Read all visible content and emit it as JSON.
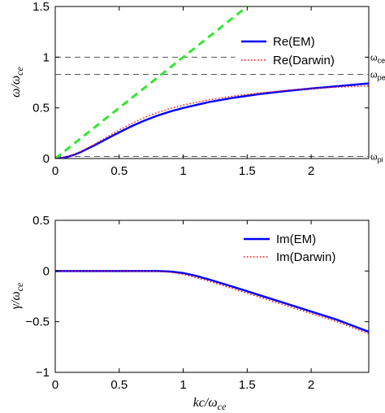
{
  "chart_data": [
    {
      "type": "line",
      "ylabel": "ω/ω_ce",
      "xlim": [
        0,
        2.45
      ],
      "ylim": [
        0,
        1.5
      ],
      "xticks": [
        "0",
        "0.5",
        "1",
        "1.5",
        "2"
      ],
      "xtick_values": [
        0,
        0.5,
        1,
        1.5,
        2
      ],
      "yticks": [
        "0",
        "0.5",
        "1",
        "1.5"
      ],
      "ytick_values": [
        0,
        0.5,
        1,
        1.5
      ],
      "legend_position": "top-right",
      "series": [
        {
          "name": "Re(EM)",
          "color": "#0000ff",
          "style": "solid",
          "x": [
            0,
            0.05,
            0.1,
            0.15,
            0.2,
            0.3,
            0.4,
            0.5,
            0.6,
            0.7,
            0.8,
            0.9,
            1.0,
            1.2,
            1.4,
            1.6,
            1.8,
            2.0,
            2.2,
            2.45
          ],
          "y": [
            0,
            0.005,
            0.018,
            0.038,
            0.064,
            0.126,
            0.193,
            0.259,
            0.321,
            0.376,
            0.424,
            0.465,
            0.499,
            0.557,
            0.601,
            0.637,
            0.666,
            0.691,
            0.713,
            0.741
          ]
        },
        {
          "name": "Re(Darwin)",
          "color": "#ff0000",
          "style": "dotted",
          "x": [
            0,
            0.05,
            0.1,
            0.15,
            0.2,
            0.3,
            0.4,
            0.5,
            0.6,
            0.7,
            0.8,
            0.9,
            1.0,
            1.2,
            1.4,
            1.6,
            1.8,
            2.0,
            2.2,
            2.45
          ],
          "y": [
            0,
            0.006,
            0.02,
            0.041,
            0.068,
            0.135,
            0.209,
            0.282,
            0.348,
            0.406,
            0.455,
            0.495,
            0.528,
            0.58,
            0.618,
            0.648,
            0.672,
            0.691,
            0.704,
            0.716
          ]
        },
        {
          "name": "",
          "color": "#33e633",
          "style": "dashed",
          "x": [
            0,
            1.5
          ],
          "y": [
            0,
            1.5
          ]
        }
      ],
      "hlines": [
        {
          "y": 1.0,
          "label": "ω_ce"
        },
        {
          "y": 0.83,
          "label": "ω_pe"
        },
        {
          "y": 0.02,
          "label": "ω_pi"
        }
      ]
    },
    {
      "type": "line",
      "xlabel": "kc/ω_ce",
      "ylabel": "γ/ω_ce",
      "xlim": [
        0,
        2.45
      ],
      "ylim": [
        -1,
        0.5
      ],
      "xticks": [
        "0",
        "0.5",
        "1",
        "1.5",
        "2"
      ],
      "xtick_values": [
        0,
        0.5,
        1,
        1.5,
        2
      ],
      "yticks": [
        "−1",
        "−0.5",
        "0",
        "0.5"
      ],
      "ytick_values": [
        -1,
        -0.5,
        0,
        0.5
      ],
      "legend_position": "top-right",
      "series": [
        {
          "name": "Im(EM)",
          "color": "#0000ff",
          "style": "solid",
          "x": [
            0,
            0.5,
            0.8,
            0.9,
            1.0,
            1.1,
            1.2,
            1.4,
            1.6,
            1.8,
            2.0,
            2.2,
            2.45
          ],
          "y": [
            0,
            0,
            0,
            -0.005,
            -0.02,
            -0.048,
            -0.083,
            -0.16,
            -0.24,
            -0.32,
            -0.4,
            -0.48,
            -0.6
          ]
        },
        {
          "name": "Im(Darwin)",
          "color": "#ff0000",
          "style": "dotted",
          "x": [
            0,
            0.5,
            0.8,
            0.9,
            1.0,
            1.1,
            1.2,
            1.4,
            1.6,
            1.8,
            2.0,
            2.2,
            2.45
          ],
          "y": [
            0,
            0,
            -0.003,
            -0.013,
            -0.033,
            -0.065,
            -0.1,
            -0.18,
            -0.26,
            -0.34,
            -0.42,
            -0.5,
            -0.62
          ]
        }
      ]
    }
  ]
}
